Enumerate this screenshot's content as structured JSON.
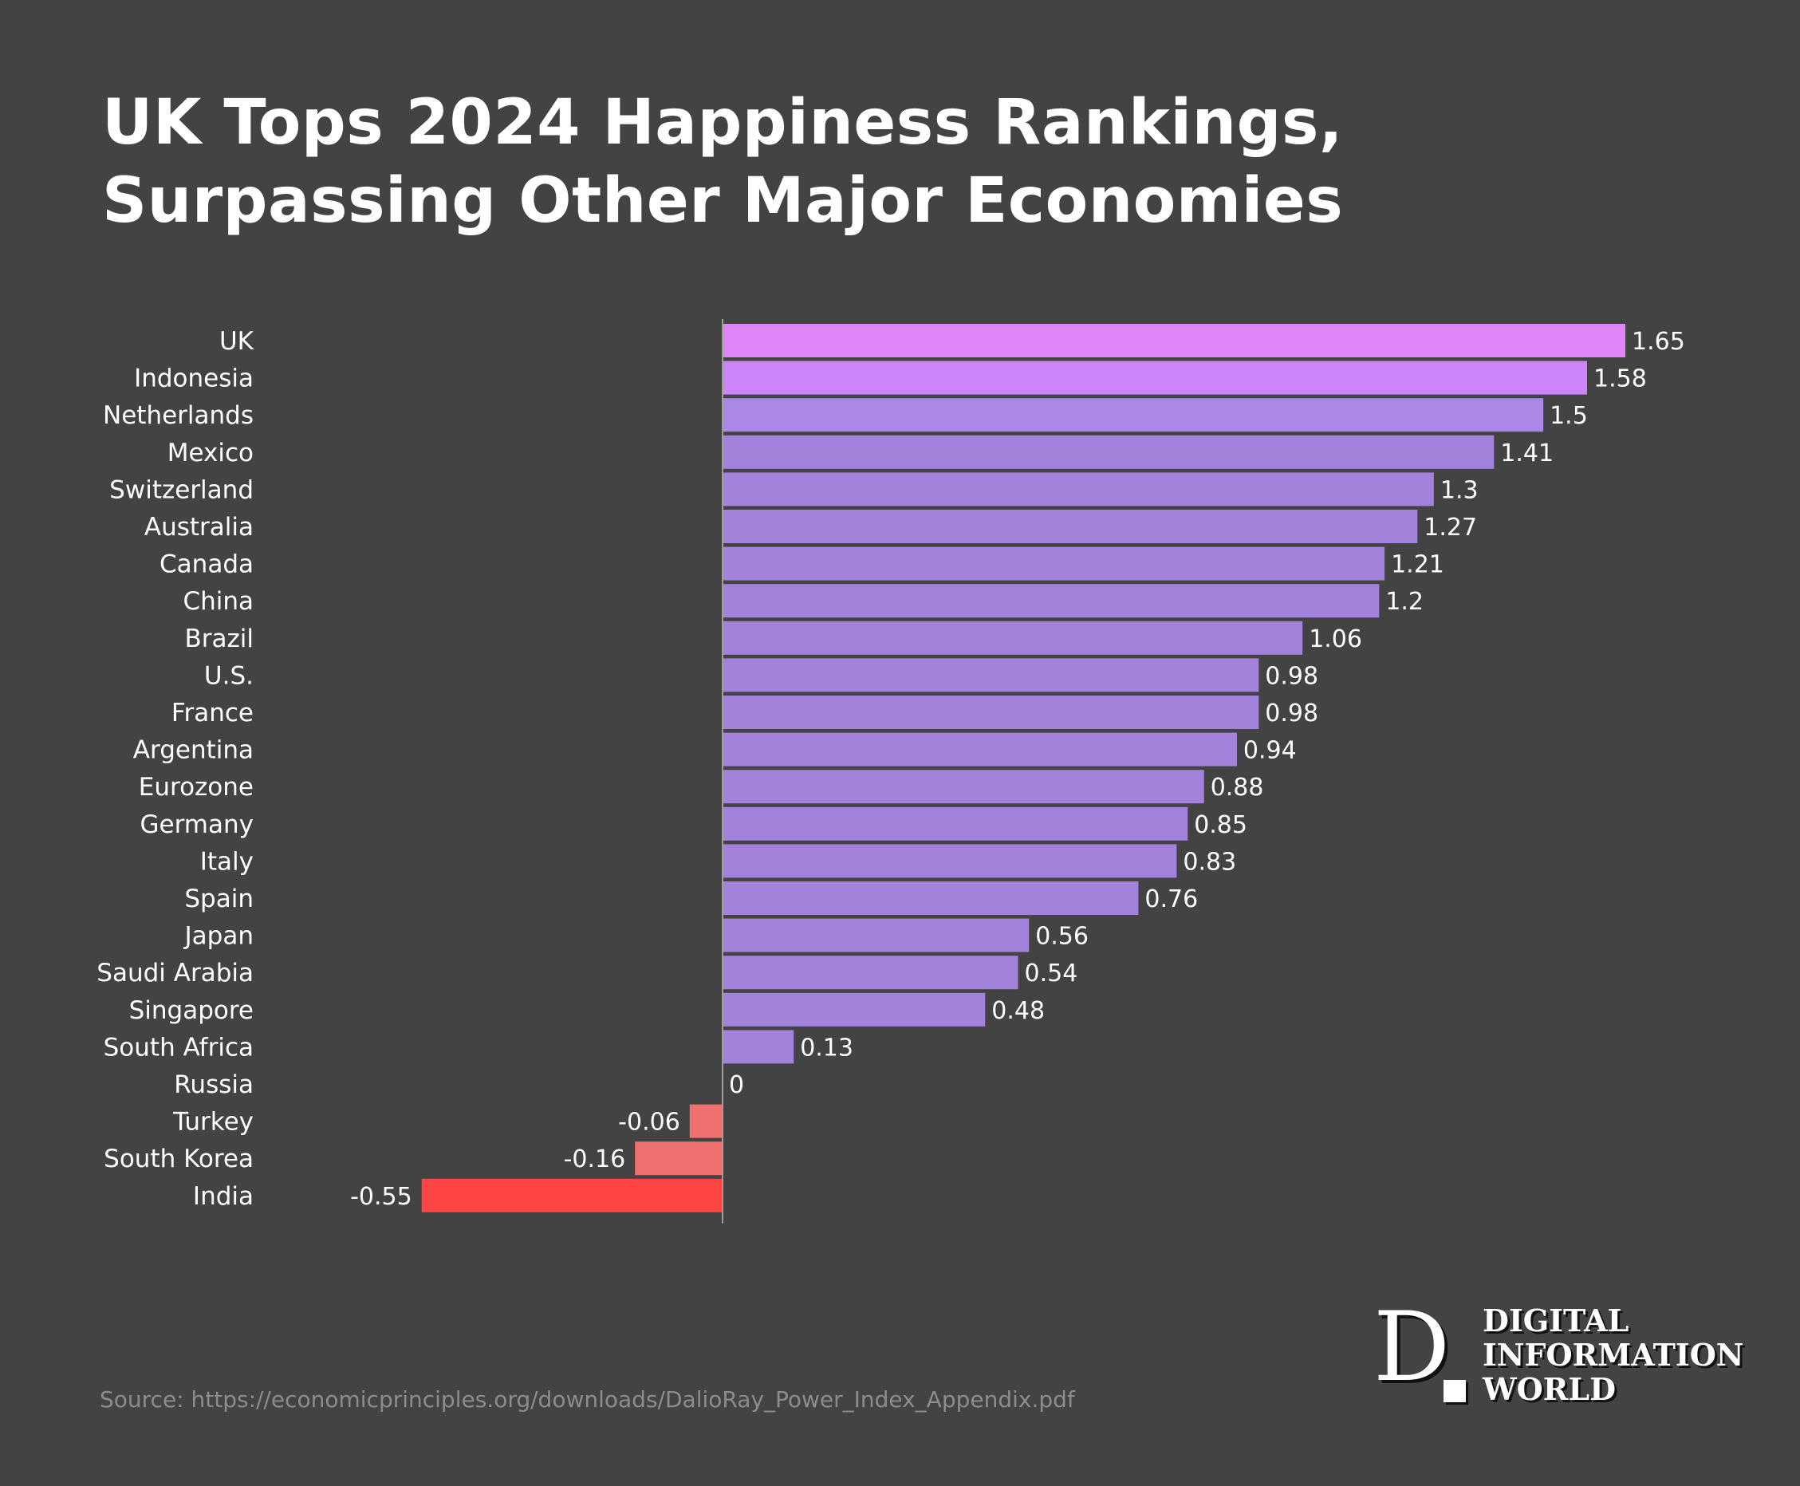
{
  "title": "UK Tops 2024 Happiness Rankings, Surpassing Other Major Economies",
  "source": "Source: https://economicprinciples.org/downloads/DalioRay_Power_Index_Appendix.pdf",
  "logo": {
    "letter": "D",
    "lines": [
      "DIGITAL",
      "INFORMATION",
      "WORLD"
    ]
  },
  "colors": {
    "background": "#434343",
    "axis": "#9e9e9e",
    "positive_top": "#e085f8",
    "positive": "#a382dc",
    "negative_small": "#f07070",
    "negative_large": "#ff4444"
  },
  "chart_data": {
    "type": "bar",
    "orientation": "horizontal",
    "title": "UK Tops 2024 Happiness Rankings, Surpassing Other Major Economies",
    "categories": [
      "UK",
      "Indonesia",
      "Netherlands",
      "Mexico",
      "Switzerland",
      "Australia",
      "Canada",
      "China",
      "Brazil",
      "U.S.",
      "France",
      "Argentina",
      "Eurozone",
      "Germany",
      "Italy",
      "Spain",
      "Japan",
      "Saudi Arabia",
      "Singapore",
      "South Africa",
      "Russia",
      "Turkey",
      "South Korea",
      "India"
    ],
    "values": [
      1.65,
      1.58,
      1.5,
      1.41,
      1.3,
      1.27,
      1.21,
      1.2,
      1.06,
      0.98,
      0.98,
      0.94,
      0.88,
      0.85,
      0.83,
      0.76,
      0.56,
      0.54,
      0.48,
      0.13,
      0,
      -0.06,
      -0.16,
      -0.55
    ],
    "value_labels": [
      "1.65",
      "1.58",
      "1.5",
      "1.41",
      "1.3",
      "1.27",
      "1.21",
      "1.2",
      "1.06",
      "0.98",
      "0.98",
      "0.94",
      "0.88",
      "0.85",
      "0.83",
      "0.76",
      "0.56",
      "0.54",
      "0.48",
      "0.13",
      "0",
      "-0.06",
      "-0.16",
      "-0.55"
    ],
    "bar_colors": [
      "#e085f8",
      "#cd85fa",
      "#ab88e6",
      "#a382dc",
      "#a382dc",
      "#a382dc",
      "#a382dc",
      "#a382dc",
      "#a382dc",
      "#a382dc",
      "#a382dc",
      "#a382dc",
      "#a382dc",
      "#a382dc",
      "#a382dc",
      "#a382dc",
      "#a382dc",
      "#a382dc",
      "#a382dc",
      "#a382dc",
      "#a382dc",
      "#f07070",
      "#f07070",
      "#ff4444"
    ],
    "xlim": [
      -0.55,
      1.65
    ],
    "grid": false,
    "legend": "none"
  }
}
